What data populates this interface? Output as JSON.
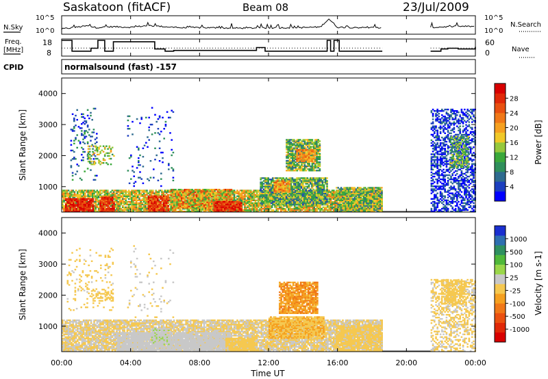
{
  "header": {
    "station": "Saskatoon (fitACF)",
    "beam": "Beam 08",
    "date": "23/Jul/2009"
  },
  "panels": {
    "nsky": {
      "left_label": "N.Sky",
      "right_label": "N.Search",
      "left_ticks": [
        "10^5",
        "10^0"
      ],
      "right_ticks": [
        "10^5",
        "10^0"
      ]
    },
    "freq": {
      "left_label_line1": "Freq.",
      "left_label_line2": "[MHz]",
      "right_label": "Nave",
      "left_ticks": [
        "18",
        "8"
      ],
      "right_ticks": [
        "60",
        "0"
      ]
    },
    "cpid": {
      "label": "CPID",
      "text": "normalsound (fast) -157"
    }
  },
  "axes": {
    "ylabel": "Slant Range [km]",
    "yticks": [
      "1000",
      "2000",
      "3000",
      "4000"
    ],
    "xlabel": "Time UT",
    "xticks": [
      "00:00",
      "04:00",
      "08:00",
      "12:00",
      "16:00",
      "20:00",
      "00:00"
    ]
  },
  "colorbars": {
    "power": {
      "label": "Power [dB]",
      "ticks": [
        "4",
        "8",
        "12",
        "16",
        "20",
        "24",
        "28"
      ],
      "colors": [
        "#0000ff",
        "#1c3fbf",
        "#2e6b8f",
        "#2f8f5b",
        "#3aa83a",
        "#96c83c",
        "#f0c828",
        "#f5a020",
        "#f07818",
        "#e85010",
        "#e02808",
        "#d80000"
      ]
    },
    "velocity": {
      "label": "Velocity [m s-1]",
      "ticks": [
        "1000",
        "500",
        "100",
        "25",
        "-25",
        "-100",
        "-500",
        "-1000"
      ],
      "colors": [
        "#1a2fd0",
        "#2e6fb0",
        "#2f9060",
        "#50b83a",
        "#9ad64a",
        "#c8c8c8",
        "#f5c850",
        "#f5a020",
        "#f07818",
        "#ea5010",
        "#e02808",
        "#d80000"
      ]
    }
  },
  "chart_data": [
    {
      "type": "line",
      "title": "N.Sky / N.Search",
      "x_unit": "hours UT",
      "xlim": [
        0,
        24
      ],
      "ylim_log10": [
        0,
        5
      ],
      "series": [
        {
          "name": "N.Sky",
          "x": [
            0,
            1.5,
            2,
            3,
            4,
            5,
            6,
            7,
            8,
            10,
            12,
            14,
            15,
            15.5,
            16,
            18.6
          ],
          "y_log10": [
            1.1,
            2.2,
            1.6,
            1.9,
            1.7,
            2.3,
            1.9,
            1.5,
            1.6,
            1.4,
            1.5,
            1.6,
            1.8,
            4.6,
            1.7,
            1.5
          ]
        }
      ],
      "gaps": [
        [
          18.6,
          21.4
        ]
      ],
      "second_segment": {
        "x": [
          21.4,
          22,
          23,
          24
        ],
        "y_log10": [
          1.6,
          1.8,
          2.0,
          2.0
        ]
      }
    },
    {
      "type": "line",
      "title": "Freq. [MHz] / Nave",
      "x_unit": "hours UT",
      "xlim": [
        0,
        24
      ],
      "ylim_left": [
        8,
        18
      ],
      "ylim_right": [
        0,
        60
      ],
      "series": [
        {
          "name": "Freq.",
          "x": [
            0,
            0.6,
            1.7,
            2.1,
            2.5,
            3.0,
            5.4,
            6.0,
            6.5,
            8.5,
            11.3,
            11.8,
            12.4,
            15.4,
            15.6,
            15.8,
            16.1,
            18.6,
            21.4,
            22.0,
            22.4,
            23.0,
            24.0
          ],
          "y": [
            18,
            10.5,
            12.5,
            18,
            10.5,
            17,
            12,
            10.5,
            11,
            11,
            13,
            10.5,
            10.5,
            18,
            10.5,
            18,
            10.5,
            10.5,
            10.5,
            12,
            12.5,
            12,
            13.5
          ]
        },
        {
          "name": "Nave",
          "x": [
            0,
            18.6,
            21.4,
            24
          ],
          "y": [
            28,
            28,
            28,
            28
          ]
        }
      ]
    },
    {
      "type": "heatmap",
      "title": "Power [dB]",
      "x_unit": "hours UT",
      "y_unit": "km",
      "xlim": [
        0,
        24
      ],
      "ylim": [
        180,
        4500
      ],
      "range_gate_km": 45,
      "colorbar": "power",
      "value_range": [
        3,
        30
      ],
      "data_gap_hours": [
        [
          18.6,
          21.4
        ]
      ],
      "regions": [
        {
          "t": [
            0.0,
            18.6
          ],
          "r": [
            180,
            900
          ],
          "value": 17,
          "spread": 6
        },
        {
          "t": [
            0.2,
            1.8
          ],
          "r": [
            180,
            600
          ],
          "value": 27,
          "spread": 3
        },
        {
          "t": [
            2.2,
            3.0
          ],
          "r": [
            180,
            650
          ],
          "value": 26,
          "spread": 3
        },
        {
          "t": [
            5.0,
            6.2
          ],
          "r": [
            180,
            700
          ],
          "value": 25,
          "spread": 4
        },
        {
          "t": [
            6.3,
            9.8
          ],
          "r": [
            300,
            900
          ],
          "value": 19,
          "spread": 7
        },
        {
          "t": [
            8.8,
            10.4
          ],
          "r": [
            180,
            500
          ],
          "value": 26,
          "spread": 3
        },
        {
          "t": [
            11.5,
            15.4
          ],
          "r": [
            400,
            1300
          ],
          "value": 13,
          "spread": 6
        },
        {
          "t": [
            12.3,
            13.2
          ],
          "r": [
            800,
            1200
          ],
          "value": 20,
          "spread": 4
        },
        {
          "t": [
            13.0,
            15.0
          ],
          "r": [
            1500,
            2500
          ],
          "value": 14,
          "spread": 6
        },
        {
          "t": [
            13.6,
            14.7
          ],
          "r": [
            1800,
            2200
          ],
          "value": 21,
          "spread": 3
        },
        {
          "t": [
            15.9,
            18.6
          ],
          "r": [
            180,
            950
          ],
          "value": 14,
          "spread": 6
        },
        {
          "t": [
            0.5,
            2.0
          ],
          "r": [
            1200,
            3500
          ],
          "value": 8,
          "spread": 5,
          "density": 0.12
        },
        {
          "t": [
            1.5,
            3.0
          ],
          "r": [
            1700,
            2300
          ],
          "value": 16,
          "spread": 5,
          "density": 0.3
        },
        {
          "t": [
            3.8,
            6.5
          ],
          "r": [
            1000,
            3600
          ],
          "value": 7,
          "spread": 5,
          "density": 0.06
        },
        {
          "t": [
            21.4,
            24.0
          ],
          "r": [
            180,
            3500
          ],
          "value": 6,
          "spread": 4,
          "density": 0.5
        },
        {
          "t": [
            22.5,
            23.6
          ],
          "r": [
            1600,
            2600
          ],
          "value": 13,
          "spread": 5,
          "density": 0.6
        }
      ]
    },
    {
      "type": "heatmap",
      "title": "Velocity [m s-1]",
      "x_unit": "hours UT",
      "y_unit": "km",
      "xlim": [
        0,
        24
      ],
      "ylim": [
        180,
        4500
      ],
      "range_gate_km": 45,
      "colorbar": "velocity",
      "value_range": [
        -1200,
        1200
      ],
      "data_gap_hours": [
        [
          18.6,
          21.4
        ]
      ],
      "regions": [
        {
          "t": [
            0.0,
            18.6
          ],
          "r": [
            180,
            1200
          ],
          "value": 0,
          "spread": 20
        },
        {
          "t": [
            3.2,
            9.8
          ],
          "r": [
            180,
            800
          ],
          "value": 110,
          "spread": 40
        },
        {
          "t": [
            5.2,
            6.2
          ],
          "r": [
            400,
            900
          ],
          "value": 160,
          "spread": 80
        },
        {
          "t": [
            9.5,
            11.2
          ],
          "r": [
            180,
            600
          ],
          "value": -60,
          "spread": 40
        },
        {
          "t": [
            12.0,
            15.2
          ],
          "r": [
            600,
            1300
          ],
          "value": -180,
          "spread": 120
        },
        {
          "t": [
            12.6,
            14.8
          ],
          "r": [
            1400,
            2400
          ],
          "value": -350,
          "spread": 200
        },
        {
          "t": [
            15.9,
            18.6
          ],
          "r": [
            180,
            1000
          ],
          "value": -30,
          "spread": 40
        },
        {
          "t": [
            0.3,
            3.0
          ],
          "r": [
            1500,
            3500
          ],
          "value": -60,
          "spread": 80,
          "density": 0.12
        },
        {
          "t": [
            1.7,
            3.0
          ],
          "r": [
            1800,
            2200
          ],
          "value": -70,
          "spread": 30,
          "density": 0.35
        },
        {
          "t": [
            3.8,
            6.5
          ],
          "r": [
            1000,
            3600
          ],
          "value": 40,
          "spread": 150,
          "density": 0.05
        },
        {
          "t": [
            21.4,
            24.0
          ],
          "r": [
            180,
            2500
          ],
          "value": -30,
          "spread": 90,
          "density": 0.45
        },
        {
          "t": [
            22.0,
            23.4
          ],
          "r": [
            1700,
            2500
          ],
          "value": -120,
          "spread": 60,
          "density": 0.55
        }
      ]
    }
  ]
}
